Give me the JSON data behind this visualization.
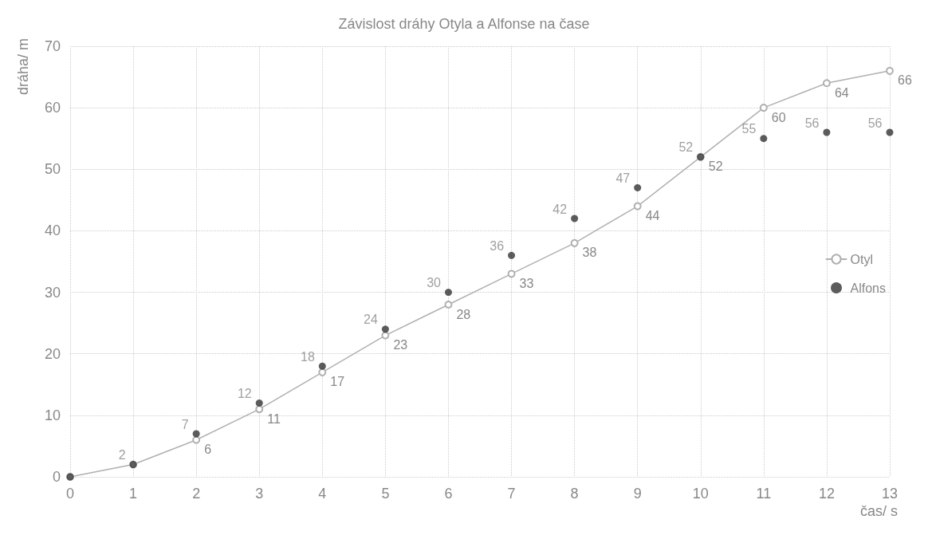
{
  "chart_data": {
    "type": "line",
    "title": "Závislost dráhy Otyla a Alfonse na čase",
    "xlabel": "čas/ s",
    "ylabel": "dráha/ m",
    "x": [
      0,
      1,
      2,
      3,
      4,
      5,
      6,
      7,
      8,
      9,
      10,
      11,
      12,
      13
    ],
    "series": [
      {
        "name": "Otyl",
        "type": "line",
        "marker": "circle",
        "color": "#b0b0b0",
        "values": [
          0,
          2,
          6,
          11,
          17,
          23,
          28,
          33,
          38,
          44,
          52,
          60,
          64,
          66
        ],
        "value_labels": [
          null,
          null,
          "6",
          "11",
          "17",
          "23",
          "28",
          "33",
          "38",
          "44",
          "52",
          "60",
          "64",
          "66"
        ]
      },
      {
        "name": "Alfons",
        "type": "scatter",
        "marker": "circle",
        "color": "#333333",
        "values": [
          0,
          2,
          7,
          12,
          18,
          24,
          30,
          36,
          42,
          47,
          52,
          55,
          56,
          56
        ],
        "value_labels": [
          null,
          "2",
          "7",
          "12",
          "18",
          "24",
          "30",
          "36",
          "42",
          "47",
          "52",
          "55",
          "56",
          "56"
        ]
      }
    ],
    "xlim": [
      0,
      13
    ],
    "xticks": [
      0,
      1,
      2,
      3,
      4,
      5,
      6,
      7,
      8,
      9,
      10,
      11,
      12,
      13
    ],
    "ylim": [
      0,
      70
    ],
    "yticks": [
      0,
      10,
      20,
      30,
      40,
      50,
      60,
      70
    ],
    "grid": true,
    "line_style": "solid",
    "legend": "right"
  }
}
